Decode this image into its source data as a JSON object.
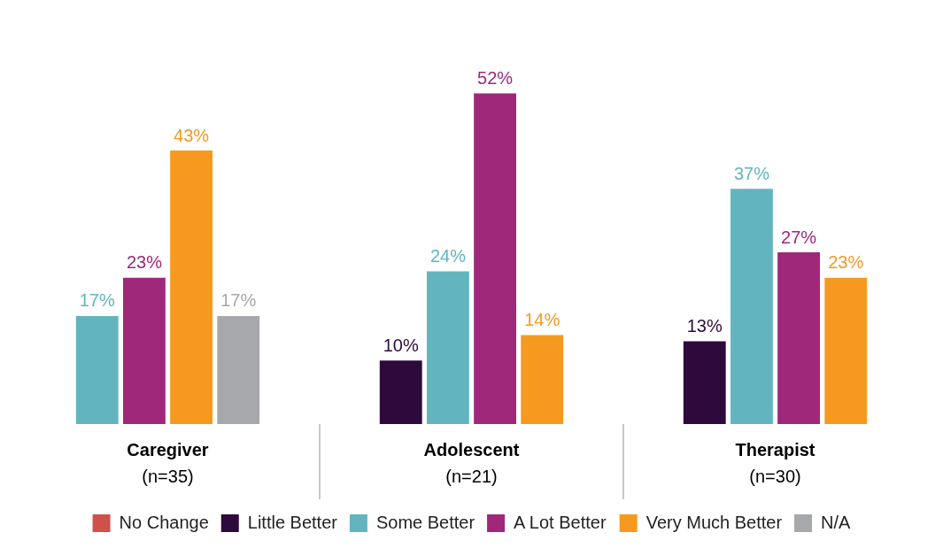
{
  "chart_data": {
    "type": "bar",
    "categories": [
      "Caregiver\n(n=35)",
      "Adolescent\n(n=21)",
      "Therapist\n(n=30)"
    ],
    "series": [
      {
        "name": "No Change",
        "color": "#d0504c",
        "values": [
          null,
          null,
          null
        ]
      },
      {
        "name": "Little Better",
        "color": "#2e0a3c",
        "values": [
          null,
          10,
          13
        ],
        "value_labels": [
          null,
          "10%",
          "13%"
        ]
      },
      {
        "name": "Some Better",
        "color": "#62b5bf",
        "values": [
          17,
          24,
          37
        ],
        "value_labels": [
          "17%",
          "24%",
          "37%"
        ]
      },
      {
        "name": "A Lot Better",
        "color": "#a0287a",
        "values": [
          23,
          52,
          27
        ],
        "value_labels": [
          "23%",
          "52%",
          "27%"
        ]
      },
      {
        "name": "Very Much Better",
        "color": "#f7991f",
        "values": [
          43,
          14,
          23
        ],
        "value_labels": [
          "43%",
          "14%",
          "23%"
        ]
      },
      {
        "name": "N/A",
        "color": "#a7a8ab",
        "values": [
          17,
          null,
          null
        ],
        "value_labels": [
          "17%",
          null,
          null
        ]
      }
    ],
    "legend": "bottom",
    "grid": false
  }
}
